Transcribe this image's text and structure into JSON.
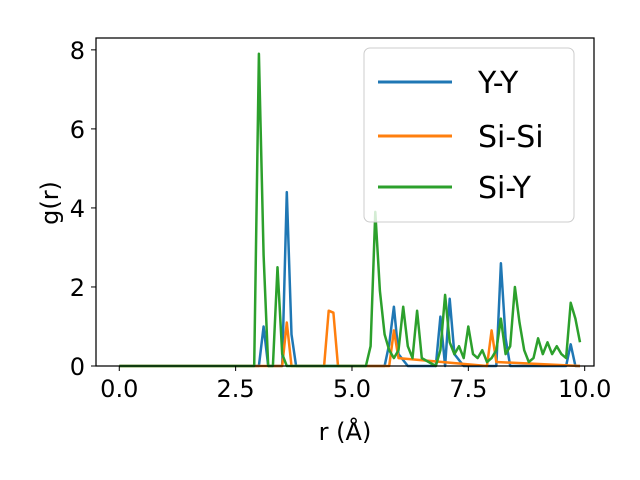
{
  "chart_data": {
    "type": "line",
    "xlabel": "r (Å)",
    "ylabel": "g(r)",
    "xlim": [
      -0.5,
      10.2
    ],
    "ylim": [
      0,
      8.3
    ],
    "xticks": [
      0.0,
      2.5,
      5.0,
      7.5,
      10.0
    ],
    "xtick_labels": [
      "0.0",
      "2.5",
      "5.0",
      "7.5",
      "10.0"
    ],
    "yticks": [
      0,
      2,
      4,
      6,
      8
    ],
    "ytick_labels": [
      "0",
      "2",
      "4",
      "6",
      "8"
    ],
    "grid": false,
    "legend_position": "upper right",
    "series": [
      {
        "name": "Y-Y",
        "color": "#1f77b4",
        "x": [
          0,
          3.0,
          3.1,
          3.2,
          3.3,
          3.5,
          3.6,
          3.7,
          3.8,
          5.7,
          5.8,
          5.9,
          6.0,
          6.2,
          6.8,
          6.9,
          7.0,
          7.1,
          7.2,
          7.4,
          8.0,
          8.1,
          8.2,
          8.3,
          8.4,
          9.6,
          9.7,
          9.8,
          9.9
        ],
        "y": [
          0,
          0,
          1.0,
          0,
          0,
          0,
          4.4,
          0.8,
          0,
          0,
          0.55,
          1.5,
          0.3,
          0,
          0,
          1.25,
          0,
          1.7,
          0.3,
          0,
          0,
          0,
          2.6,
          0.7,
          0,
          0,
          0.55,
          0,
          0
        ]
      },
      {
        "name": "Si-Si",
        "color": "#ff7f0e",
        "x": [
          0,
          3.5,
          3.6,
          3.7,
          4.4,
          4.5,
          4.6,
          4.7,
          5.8,
          5.9,
          6.0,
          7.9,
          8.0,
          8.1,
          9.9
        ],
        "y": [
          0,
          0,
          1.1,
          0,
          0,
          1.4,
          1.35,
          0,
          0,
          0.9,
          0.2,
          0,
          0.9,
          0.1,
          0
        ]
      },
      {
        "name": "Si-Y",
        "color": "#2ca02c",
        "x": [
          0,
          2.8,
          2.9,
          3.0,
          3.1,
          3.2,
          3.3,
          3.4,
          3.5,
          3.6,
          5.3,
          5.4,
          5.5,
          5.6,
          5.7,
          5.8,
          5.9,
          6.0,
          6.1,
          6.2,
          6.3,
          6.4,
          6.5,
          6.8,
          6.9,
          7.0,
          7.1,
          7.2,
          7.3,
          7.4,
          7.5,
          7.6,
          7.7,
          7.8,
          7.9,
          8.0,
          8.1,
          8.2,
          8.3,
          8.4,
          8.5,
          8.6,
          8.7,
          8.8,
          8.9,
          9.0,
          9.1,
          9.2,
          9.3,
          9.4,
          9.5,
          9.6,
          9.7,
          9.8,
          9.9
        ],
        "y": [
          0,
          0,
          0,
          7.9,
          2.8,
          0,
          0,
          2.5,
          0.3,
          0,
          0,
          0.5,
          3.9,
          1.9,
          0.8,
          0.4,
          0.2,
          0.4,
          1.5,
          0.5,
          0.2,
          1.4,
          0.2,
          0,
          0.4,
          1.8,
          0.6,
          0.3,
          0.5,
          0.2,
          1.0,
          0.3,
          0.2,
          0.4,
          0.1,
          0.2,
          0.4,
          1.2,
          0.3,
          0.5,
          2.0,
          1.1,
          0.4,
          0.1,
          0.2,
          0.7,
          0.3,
          0.6,
          0.3,
          0.5,
          0.3,
          0.2,
          1.6,
          1.2,
          0.6
        ]
      }
    ]
  }
}
